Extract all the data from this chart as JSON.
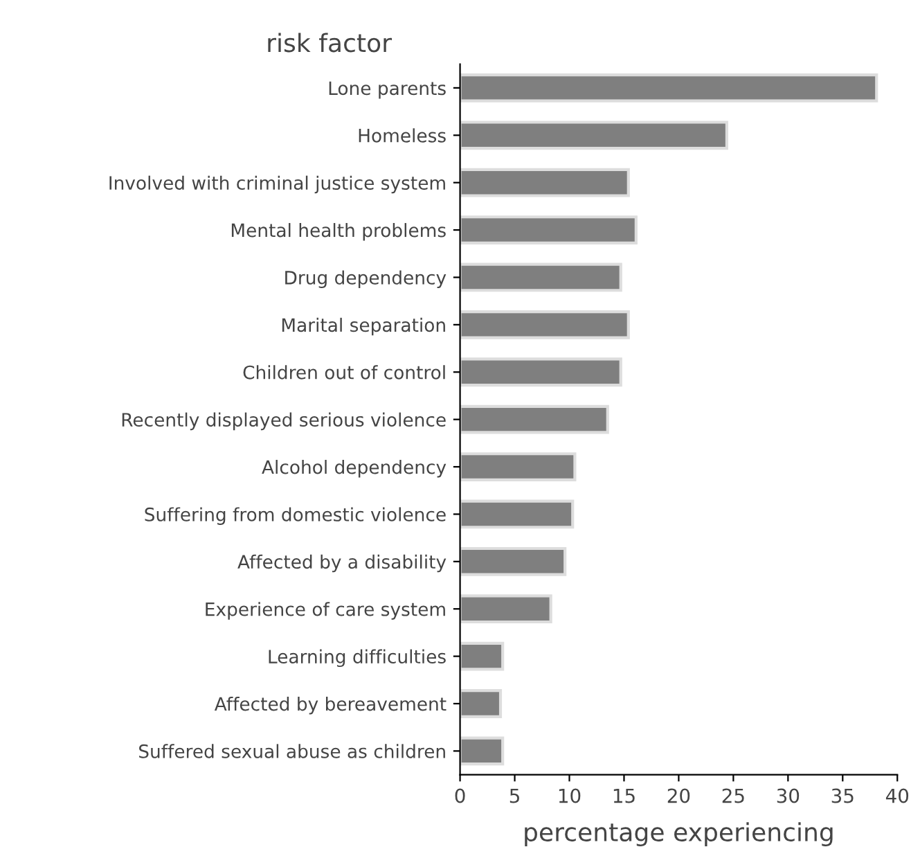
{
  "chart_data": {
    "type": "bar",
    "orientation": "horizontal",
    "ylabel": "risk factor",
    "xlabel": "percentage experiencing",
    "categories": [
      "Lone parents",
      "Homeless",
      "Involved with criminal justice system",
      "Mental health problems",
      "Drug dependency",
      "Marital separation",
      "Children out of control",
      "Recently displayed serious violence",
      "Alcohol dependency",
      "Suffering from domestic violence",
      "Affected by a disability",
      "Experience of care system",
      "Learning difficulties",
      "Affected by bereavement",
      "Suffered sexual abuse as children"
    ],
    "values": [
      38.1,
      24.4,
      15.4,
      16.1,
      14.7,
      15.4,
      14.7,
      13.5,
      10.5,
      10.3,
      9.6,
      8.3,
      3.9,
      3.7,
      3.9
    ],
    "color": "#7f7f7f",
    "xlim": [
      0,
      40
    ],
    "xticks": [
      0,
      5,
      10,
      15,
      20,
      25,
      30,
      35,
      40
    ],
    "grid": false,
    "legend": false
  }
}
